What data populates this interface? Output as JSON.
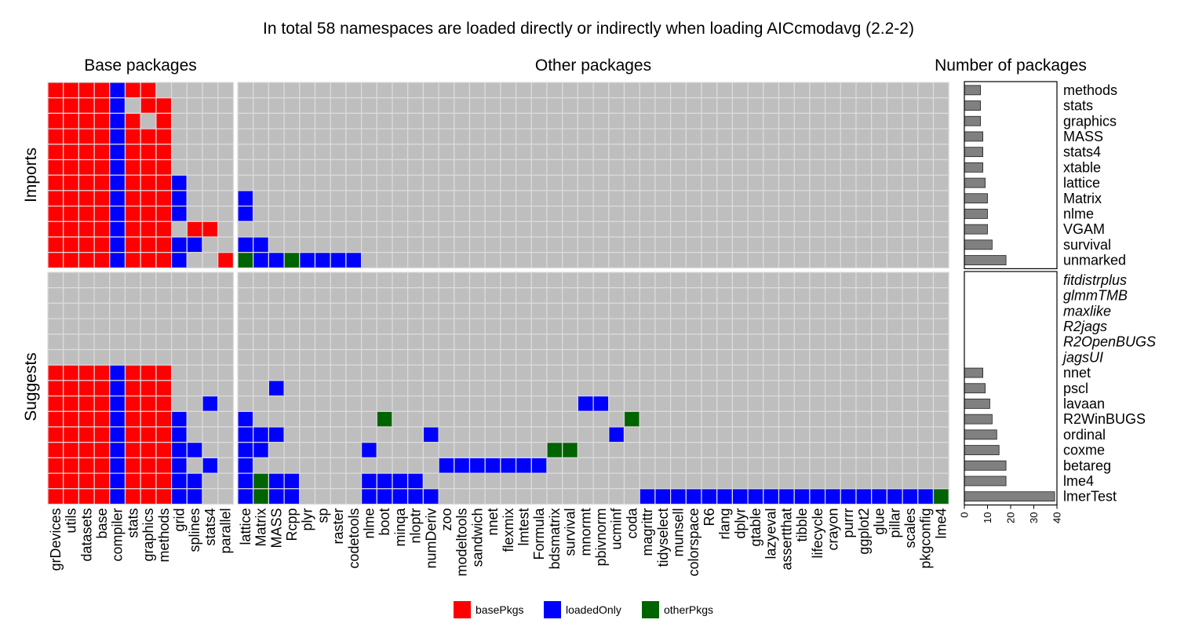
{
  "chart_data": {
    "type": "heatmap",
    "title": "In total 58 namespaces are loaded directly or indirectly when loading AICcmodavg (2.2-2)",
    "column_groups": [
      {
        "label": "Base packages",
        "columns": [
          "grDevices",
          "utils",
          "datasets",
          "base",
          "compiler",
          "stats",
          "graphics",
          "methods",
          "grid",
          "splines",
          "stats4",
          "parallel"
        ]
      },
      {
        "label": "Other packages",
        "columns": [
          "lattice",
          "Matrix",
          "MASS",
          "Rcpp",
          "plyr",
          "sp",
          "raster",
          "codetools",
          "nlme",
          "boot",
          "minqa",
          "nloptr",
          "numDeriv",
          "zoo",
          "modeltools",
          "sandwich",
          "nnet",
          "flexmix",
          "lmtest",
          "Formula",
          "bdsmatrix",
          "survival",
          "mnormt",
          "pbivnorm",
          "ucminf",
          "coda",
          "magrittr",
          "tidyselect",
          "munsell",
          "colorspace",
          "R6",
          "rlang",
          "dplyr",
          "gtable",
          "lazyeval",
          "assertthat",
          "tibble",
          "lifecycle",
          "crayon",
          "purrr",
          "ggplot2",
          "glue",
          "pillar",
          "scales",
          "pkgconfig",
          "lme4"
        ]
      }
    ],
    "bar_panel": {
      "title": "Number of packages",
      "x_ticks": [
        0,
        10,
        20,
        30,
        40
      ],
      "xlim": [
        0,
        40
      ]
    },
    "facets": [
      {
        "label": "Imports",
        "rows": [
          {
            "name": "methods",
            "count": 7,
            "greyed": false,
            "base": "rrrrbrr.....",
            "other": ""
          },
          {
            "name": "stats",
            "count": 7,
            "greyed": false,
            "base": "rrrrb.rr....",
            "other": ""
          },
          {
            "name": "graphics",
            "count": 7,
            "greyed": false,
            "base": "rrrrbr.r....",
            "other": ""
          },
          {
            "name": "MASS",
            "count": 8,
            "greyed": false,
            "base": "rrrrbrrr....",
            "other": ""
          },
          {
            "name": "stats4",
            "count": 8,
            "greyed": false,
            "base": "rrrrbrrr....",
            "other": ""
          },
          {
            "name": "xtable",
            "count": 8,
            "greyed": false,
            "base": "rrrrbrrr....",
            "other": ""
          },
          {
            "name": "lattice",
            "count": 9,
            "greyed": false,
            "base": "rrrrbrrrb...",
            "other": ""
          },
          {
            "name": "Matrix",
            "count": 10,
            "greyed": false,
            "base": "rrrrbrrrb...",
            "other": "b"
          },
          {
            "name": "nlme",
            "count": 10,
            "greyed": false,
            "base": "rrrrbrrrb...",
            "other": "b"
          },
          {
            "name": "VGAM",
            "count": 10,
            "greyed": false,
            "base": "rrrrbrrr.rr.",
            "other": ""
          },
          {
            "name": "survival",
            "count": 12,
            "greyed": false,
            "base": "rrrrbrrrbb..",
            "other": "bb"
          },
          {
            "name": "unmarked",
            "count": 18,
            "greyed": false,
            "base": "rrrrbrrrb..r",
            "other": "gbbgbbbb"
          }
        ]
      },
      {
        "label": "Suggests",
        "rows": [
          {
            "name": "fitdistrplus",
            "count": 0,
            "greyed": true,
            "base": "",
            "other": ""
          },
          {
            "name": "glmmTMB",
            "count": 0,
            "greyed": true,
            "base": "",
            "other": ""
          },
          {
            "name": "maxlike",
            "count": 0,
            "greyed": true,
            "base": "",
            "other": ""
          },
          {
            "name": "R2jags",
            "count": 0,
            "greyed": true,
            "base": "",
            "other": ""
          },
          {
            "name": "R2OpenBUGS",
            "count": 0,
            "greyed": true,
            "base": "",
            "other": ""
          },
          {
            "name": "jagsUI",
            "count": 0,
            "greyed": true,
            "base": "",
            "other": ""
          },
          {
            "name": "nnet",
            "count": 8,
            "greyed": false,
            "base": "rrrrbrrr....",
            "other": ""
          },
          {
            "name": "pscl",
            "count": 9,
            "greyed": false,
            "base": "rrrrbrrr....",
            "other": "..b"
          },
          {
            "name": "lavaan",
            "count": 11,
            "greyed": false,
            "base": "rrrrbrrr..b.",
            "other": "......................bb"
          },
          {
            "name": "R2WinBUGS",
            "count": 12,
            "greyed": false,
            "base": "rrrrbrrrb...",
            "other": "b........g...............g"
          },
          {
            "name": "ordinal",
            "count": 14,
            "greyed": false,
            "base": "rrrrbrrrb...",
            "other": "bbb.........b...........b"
          },
          {
            "name": "coxme",
            "count": 15,
            "greyed": false,
            "base": "rrrrbrrrbb..",
            "other": "bb......b...........gg"
          },
          {
            "name": "betareg",
            "count": 18,
            "greyed": false,
            "base": "rrrrbrrrb.b.",
            "other": "b............bbbbbbb"
          },
          {
            "name": "lme4",
            "count": 18,
            "greyed": false,
            "base": "rrrrbrrrbb..",
            "other": "bgbb....bbbb"
          },
          {
            "name": "lmerTest",
            "count": 39,
            "greyed": false,
            "base": "rrrrbrrrbb..",
            "other": "bgbb....bbbbb.............bbbbbbbbbbbbbbbbbbbg"
          }
        ]
      }
    ],
    "legend": [
      {
        "code": "r",
        "label": "basePkgs",
        "color": "#ff0000"
      },
      {
        "code": "b",
        "label": "loadedOnly",
        "color": "#0000ff"
      },
      {
        "code": "g",
        "label": "otherPkgs",
        "color": "#006400"
      }
    ],
    "empty_color": "#bebebe",
    "grid_color": "#dcdcdc",
    "bar_color": "#808080",
    "greyed_label_color": "#999999",
    "legend_placement": "bottom-center"
  }
}
